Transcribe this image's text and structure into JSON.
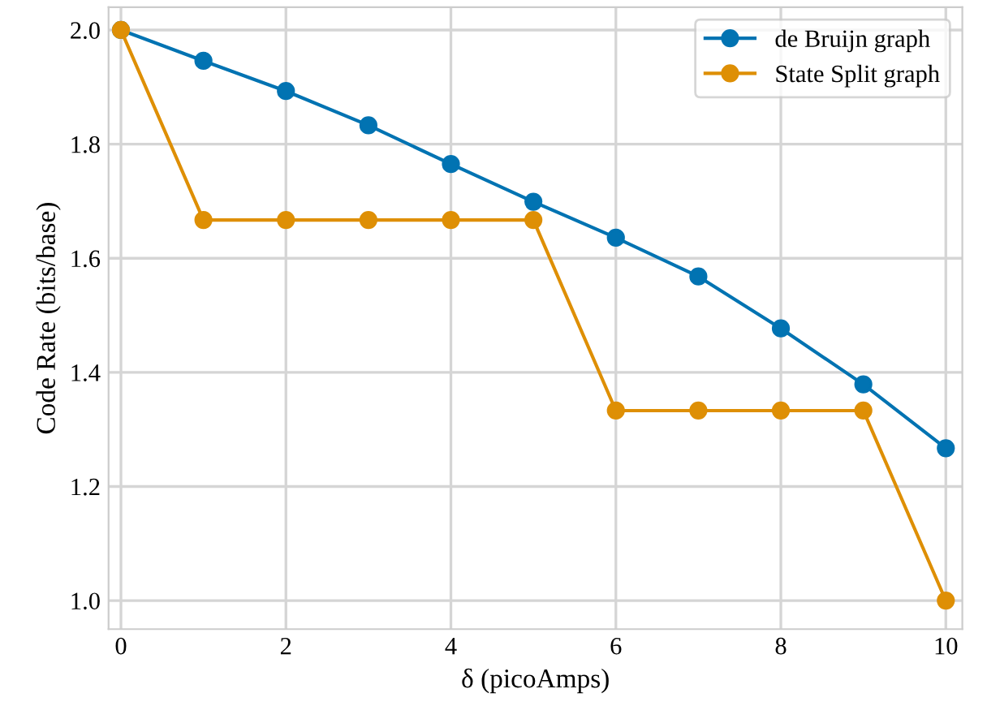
{
  "chart_data": {
    "type": "line",
    "xlabel": "δ (picoAmps)",
    "ylabel": "Code Rate (bits/base)",
    "x": [
      0,
      1,
      2,
      3,
      4,
      5,
      6,
      7,
      8,
      9,
      10
    ],
    "series": [
      {
        "name": "de Bruijn graph",
        "color": "#0173b2",
        "values": [
          2.0,
          1.946,
          1.893,
          1.833,
          1.765,
          1.699,
          1.636,
          1.568,
          1.477,
          1.379,
          1.267
        ]
      },
      {
        "name": "State Split graph",
        "color": "#de8f05",
        "values": [
          2.0,
          1.667,
          1.667,
          1.667,
          1.667,
          1.667,
          1.333,
          1.333,
          1.333,
          1.333,
          1.0
        ]
      }
    ],
    "xlim": [
      -0.15,
      10.2
    ],
    "ylim": [
      0.95,
      2.04
    ],
    "xticks": [
      0,
      2,
      4,
      6,
      8,
      10
    ],
    "yticks": [
      {
        "value": 1,
        "label": "1.0"
      },
      1.2,
      1.4,
      1.6,
      1.8,
      {
        "value": 2,
        "label": "2.0"
      }
    ],
    "grid": true,
    "legend": "top right",
    "marker": "circle",
    "line_style": "solid"
  }
}
